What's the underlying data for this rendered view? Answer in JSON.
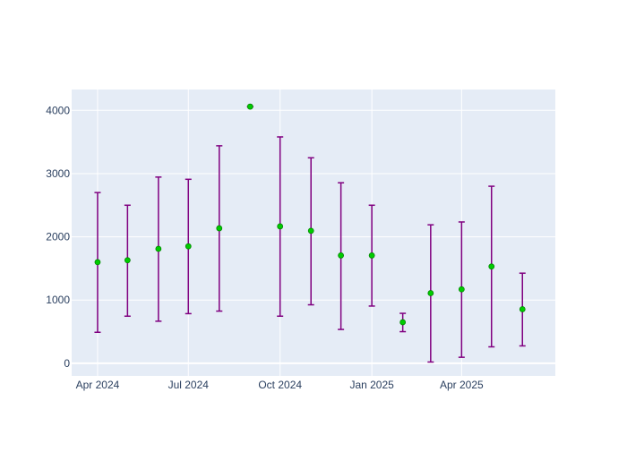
{
  "chart_data": {
    "type": "scatter",
    "title": "",
    "xlabel": "",
    "ylabel": "",
    "x_tick_labels": [
      "Apr 2024",
      "Jul 2024",
      "Oct 2024",
      "Jan 2025",
      "Apr 2025"
    ],
    "x_tick_dates": [
      "2024-04-01",
      "2024-07-01",
      "2024-10-01",
      "2025-01-01",
      "2025-04-01"
    ],
    "y_ticks": [
      0,
      1000,
      2000,
      3000,
      4000
    ],
    "y_tick_labels": [
      "0",
      "1000",
      "2000",
      "3000",
      "4000"
    ],
    "xlim": [
      "2024-03-06",
      "2025-07-04"
    ],
    "ylim": [
      -200,
      4330
    ],
    "grid": true,
    "legend": false,
    "colors": {
      "plot_background": "#e5ecf6",
      "grid": "#ffffff",
      "marker": "#00cc00",
      "marker_outline": "#008000",
      "error_bar": "#800080"
    },
    "points": [
      {
        "x": "2024-04-01",
        "y": 1600,
        "err_low": 490,
        "err_high": 2700
      },
      {
        "x": "2024-05-01",
        "y": 1630,
        "err_low": 745,
        "err_high": 2500
      },
      {
        "x": "2024-06-01",
        "y": 1810,
        "err_low": 665,
        "err_high": 2945
      },
      {
        "x": "2024-07-01",
        "y": 1850,
        "err_low": 785,
        "err_high": 2910
      },
      {
        "x": "2024-08-01",
        "y": 2135,
        "err_low": 825,
        "err_high": 3440
      },
      {
        "x": "2024-09-01",
        "y": 4060,
        "err_low": 4060,
        "err_high": 4060
      },
      {
        "x": "2024-10-01",
        "y": 2165,
        "err_low": 745,
        "err_high": 3580
      },
      {
        "x": "2024-11-01",
        "y": 2095,
        "err_low": 925,
        "err_high": 3250
      },
      {
        "x": "2024-12-01",
        "y": 1705,
        "err_low": 535,
        "err_high": 2855
      },
      {
        "x": "2025-01-01",
        "y": 1705,
        "err_low": 905,
        "err_high": 2500
      },
      {
        "x": "2025-02-01",
        "y": 650,
        "err_low": 500,
        "err_high": 790
      },
      {
        "x": "2025-03-01",
        "y": 1110,
        "err_low": 20,
        "err_high": 2190
      },
      {
        "x": "2025-04-01",
        "y": 1170,
        "err_low": 95,
        "err_high": 2235
      },
      {
        "x": "2025-05-01",
        "y": 1530,
        "err_low": 260,
        "err_high": 2800
      },
      {
        "x": "2025-06-01",
        "y": 855,
        "err_low": 275,
        "err_high": 1425
      }
    ]
  }
}
